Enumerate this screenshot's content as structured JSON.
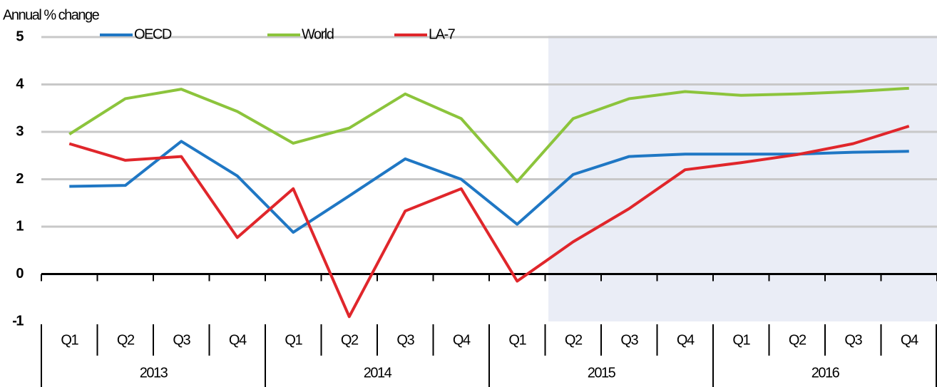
{
  "chart_data": {
    "type": "line",
    "y_label": "Annual % change",
    "categories": [
      "Q1",
      "Q2",
      "Q3",
      "Q4",
      "Q1",
      "Q2",
      "Q3",
      "Q4",
      "Q1",
      "Q2",
      "Q3",
      "Q4",
      "Q1",
      "Q2",
      "Q3",
      "Q4"
    ],
    "x_groups": [
      "2013",
      "2014",
      "2015",
      "2016"
    ],
    "series": [
      {
        "name": "OECD",
        "color": "#1f77c4",
        "values": [
          1.85,
          1.87,
          2.8,
          2.07,
          0.88,
          1.65,
          2.43,
          2.0,
          1.05,
          2.1,
          2.48,
          2.53,
          2.53,
          2.53,
          2.57,
          2.59
        ]
      },
      {
        "name": "World",
        "color": "#8cc43c",
        "values": [
          2.95,
          3.7,
          3.9,
          3.43,
          2.76,
          3.08,
          3.8,
          3.28,
          1.95,
          3.28,
          3.7,
          3.85,
          3.77,
          3.8,
          3.85,
          3.92
        ]
      },
      {
        "name": "LA-7",
        "color": "#e0262b",
        "values": [
          2.75,
          2.4,
          2.48,
          0.77,
          1.8,
          -0.9,
          1.33,
          1.8,
          -0.15,
          0.68,
          1.38,
          2.2,
          2.35,
          2.52,
          2.75,
          3.12
        ]
      }
    ],
    "ylim": [
      -1,
      5
    ],
    "yticks": [
      -1,
      0,
      1,
      2,
      3,
      4,
      5
    ],
    "grid": true
  }
}
